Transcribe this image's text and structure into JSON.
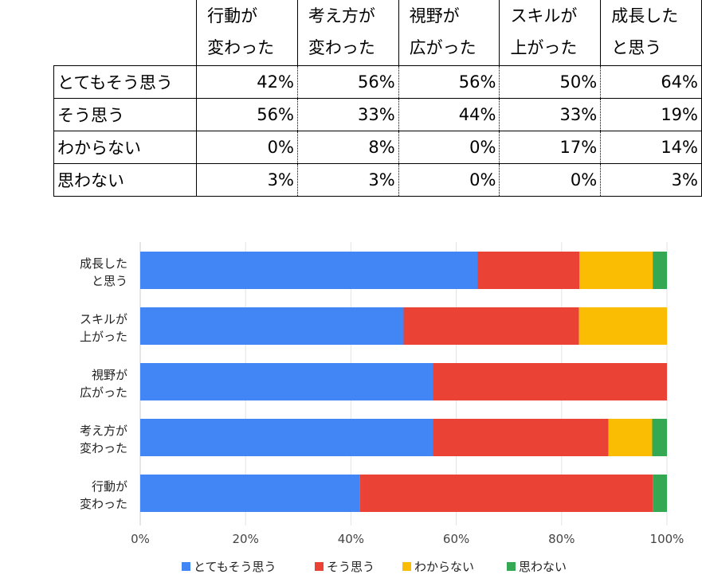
{
  "table": {
    "columns": [
      {
        "line1": "行動が",
        "line2": "変わった"
      },
      {
        "line1": "考え方が",
        "line2": "変わった"
      },
      {
        "line1": "視野が",
        "line2": "広がった"
      },
      {
        "line1": "スキルが",
        "line2": "上がった"
      },
      {
        "line1": "成長した",
        "line2": "と思う"
      }
    ],
    "rows": [
      {
        "label": "とてもそう思う",
        "values": [
          "42%",
          "56%",
          "56%",
          "50%",
          "64%"
        ]
      },
      {
        "label": "そう思う",
        "values": [
          "56%",
          "33%",
          "44%",
          "33%",
          "19%"
        ]
      },
      {
        "label": "わからない",
        "values": [
          "0%",
          "8%",
          "0%",
          "17%",
          "14%"
        ]
      },
      {
        "label": "思わない",
        "values": [
          "3%",
          "3%",
          "0%",
          "0%",
          "3%"
        ]
      }
    ]
  },
  "chart_data": {
    "type": "bar",
    "orientation": "horizontal",
    "stacked": true,
    "categories": [
      {
        "line1": "成長した",
        "line2": "と思う"
      },
      {
        "line1": "スキルが",
        "line2": "上がった"
      },
      {
        "line1": "視野が",
        "line2": "広がった"
      },
      {
        "line1": "考え方が",
        "line2": "変わった"
      },
      {
        "line1": "行動が",
        "line2": "変わった"
      }
    ],
    "series": [
      {
        "name": "とてもそう思う",
        "color": "#4285f4",
        "values": [
          64,
          50,
          55.6,
          55.6,
          41.7
        ]
      },
      {
        "name": "そう思う",
        "color": "#ea4335",
        "values": [
          19.4,
          33.3,
          44.4,
          33.3,
          55.6
        ]
      },
      {
        "name": "わからない",
        "color": "#fbbc04",
        "values": [
          13.9,
          16.7,
          0,
          8.3,
          0
        ]
      },
      {
        "name": "思わない",
        "color": "#34a853",
        "values": [
          2.8,
          0,
          0,
          2.8,
          2.8
        ]
      }
    ],
    "xlim": [
      0,
      100
    ],
    "x_ticks": [
      "0%",
      "20%",
      "40%",
      "60%",
      "80%",
      "100%"
    ],
    "grid": true,
    "legend_position": "bottom"
  }
}
